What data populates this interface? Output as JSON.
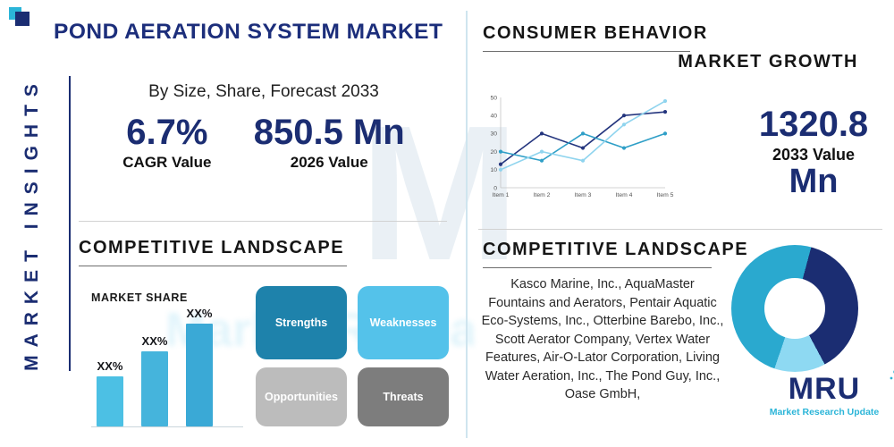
{
  "watermark": {
    "letter": "M",
    "text": "Market Research Update"
  },
  "left_rail": {
    "label": "MARKET INSIGHTS"
  },
  "header": {
    "title": "POND AERATION SYSTEM MARKET",
    "subtitle": "By Size, Share, Forecast 2033"
  },
  "stats": {
    "cagr_value": "6.7%",
    "cagr_label": "CAGR Value",
    "v2026_value": "850.5 Mn",
    "v2026_label": "2026 Value",
    "v2033_value": "1320.8",
    "v2033_label": "2033 Value",
    "v2033_unit": "Mn"
  },
  "sections": {
    "consumer_behavior": "CONSUMER BEHAVIOR",
    "market_growth": "MARKET GROWTH",
    "competitive_landscape_left": "COMPETITIVE LANDSCAPE",
    "market_share": "MARKET SHARE",
    "competitive_landscape_right": "COMPETITIVE LANDSCAPE"
  },
  "swot": [
    {
      "label": "Strengths",
      "color": "#1e82ab"
    },
    {
      "label": "Weaknesses",
      "color": "#54c2ea"
    },
    {
      "label": "Opportunities",
      "color": "#bcbcbc"
    },
    {
      "label": "Threats",
      "color": "#7d7d7d"
    }
  ],
  "companies": "Kasco Marine, Inc., AquaMaster Fountains and Aerators, Pentair Aquatic Eco-Systems, Inc., Otterbine Barebo, Inc., Scott Aerator Company, Vertex Water Features, Air-O-Lator Corporation, Living Water Aeration, Inc., The Pond Guy, Inc., Oase GmbH,",
  "logo": {
    "name": "MRU",
    "tagline": "Market Research Update"
  },
  "colors": {
    "navy": "#1b2d72",
    "teal": "#2bb5d8",
    "light_blue": "#58c6ea"
  },
  "chart_data": [
    {
      "id": "market_growth_line",
      "type": "line",
      "title": "MARKET GROWTH",
      "x": [
        "Item 1",
        "Item 2",
        "Item 3",
        "Item 4",
        "Item 5"
      ],
      "ylim": [
        0,
        50
      ],
      "yticks": [
        0,
        10,
        20,
        30,
        40,
        50
      ],
      "grid": false,
      "legend": "none",
      "series": [
        {
          "name": "navy-series",
          "color": "#24357e",
          "values": [
            13,
            30,
            22,
            40,
            42
          ]
        },
        {
          "name": "teal-series",
          "color": "#2f9fc7",
          "values": [
            20,
            15,
            30,
            22,
            30
          ]
        },
        {
          "name": "light-blue-series",
          "color": "#8fd4ee",
          "values": [
            10,
            20,
            15,
            35,
            48
          ]
        }
      ]
    },
    {
      "id": "market_share_bar",
      "type": "bar",
      "title": "MARKET SHARE",
      "categories": [
        "XX%",
        "XX%",
        "XX%"
      ],
      "values": [
        30,
        45,
        62
      ],
      "ylim": [
        0,
        70
      ],
      "bar_colors": [
        "#4cc0e4",
        "#45b4dc",
        "#3aa9d6"
      ]
    },
    {
      "id": "competitor_donut",
      "type": "pie",
      "hole": 0.45,
      "slices": [
        {
          "label": "segment-navy",
          "value": 38,
          "color": "#1b2d72"
        },
        {
          "label": "segment-light-blue",
          "value": 13,
          "color": "#8ed9f2"
        },
        {
          "label": "segment-teal",
          "value": 49,
          "color": "#2aa9cf"
        }
      ]
    }
  ]
}
